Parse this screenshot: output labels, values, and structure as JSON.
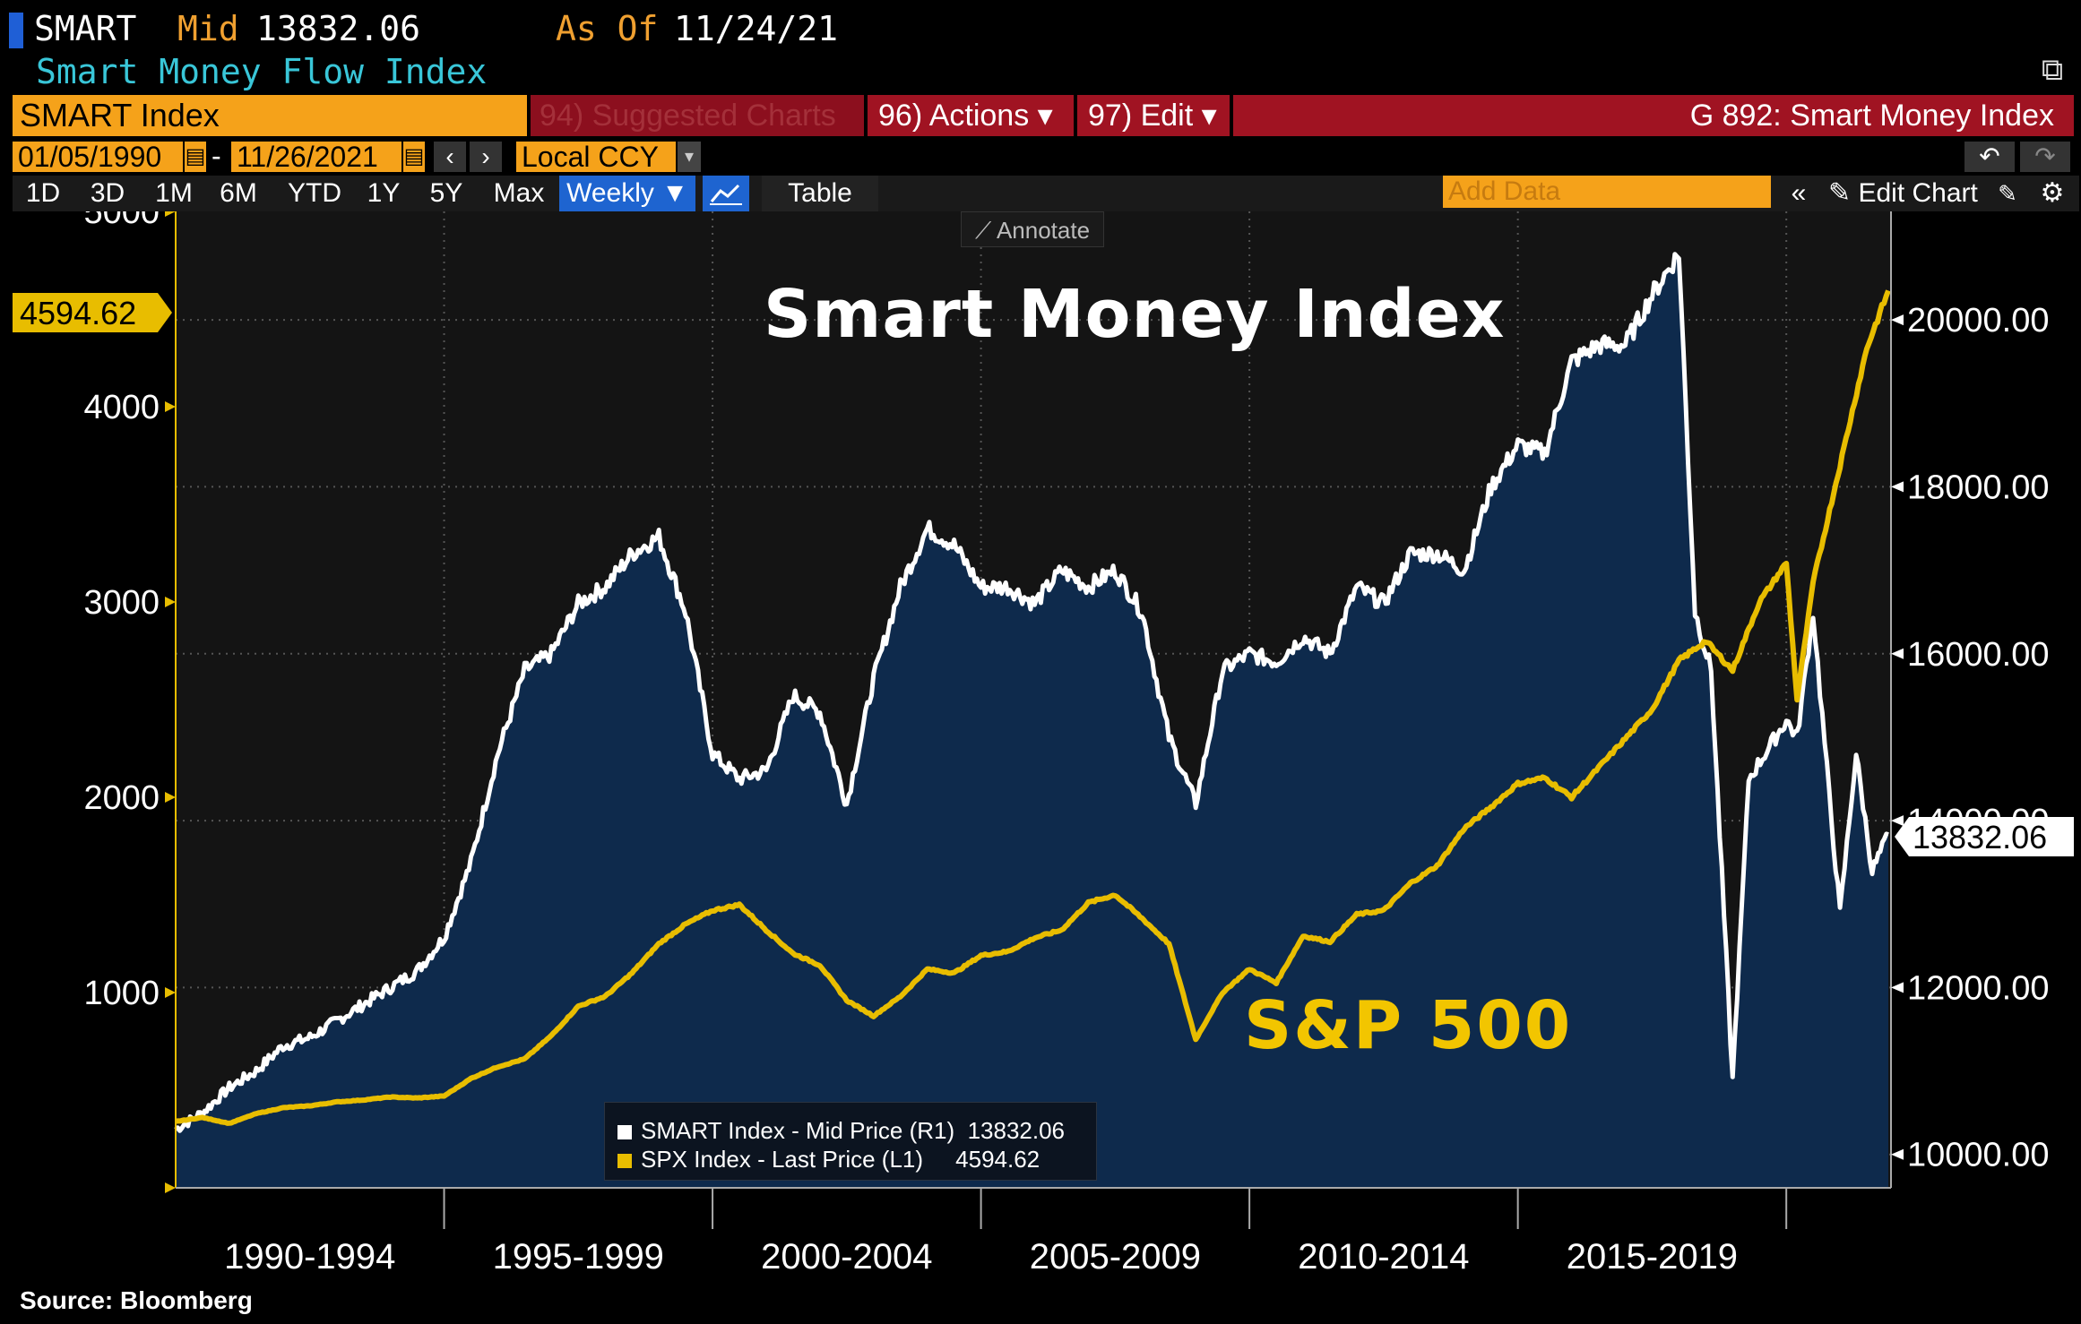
{
  "header": {
    "ticker": "SMART",
    "mid_label": "Mid",
    "mid_value": "13832.06",
    "asof_label": "As Of",
    "asof_value": "11/24/21",
    "subtitle": "Smart Money Flow Index"
  },
  "toolbar": {
    "security": "SMART Index",
    "suggested": "94) Suggested Charts",
    "actions": "96) Actions ▾",
    "edit": "97) Edit ▾",
    "graph_title": "G 892: Smart Money Index",
    "start_date": "01/05/1990",
    "end_date": "11/26/2021",
    "currency": "Local CCY",
    "ranges": [
      "1D",
      "3D",
      "1M",
      "6M",
      "YTD",
      "1Y",
      "5Y",
      "Max"
    ],
    "frequency": "Weekly ▼",
    "table": "Table",
    "add_data_placeholder": "Add Data",
    "edit_chart": "Edit Chart",
    "annotate": "Annotate"
  },
  "chart_data": {
    "type": "line",
    "title": "Smart Money Index",
    "annotation": "S&P 500",
    "x_categories": [
      "1990-1994",
      "1995-1999",
      "2000-2004",
      "2005-2009",
      "2010-2014",
      "2015-2019"
    ],
    "left_axis": {
      "ticks": [
        "5000",
        "4000",
        "3000",
        "2000",
        "1000"
      ],
      "range": [
        0,
        5000
      ]
    },
    "right_axis": {
      "ticks": [
        "20000.00",
        "18000.00",
        "16000.00",
        "14000.00",
        "12000.00",
        "10000.00"
      ],
      "range": [
        9600,
        21300
      ]
    },
    "series": [
      {
        "name": "SMART Index - Mid Price (R1)",
        "last": "13832.06",
        "axis": "right",
        "color": "#ffffff",
        "x": [
          1990.0,
          1990.5,
          1991.0,
          1991.5,
          1992.0,
          1992.5,
          1993.0,
          1993.5,
          1994.0,
          1994.5,
          1995.0,
          1995.5,
          1996.0,
          1996.5,
          1997.0,
          1997.5,
          1998.0,
          1998.5,
          1999.0,
          1999.5,
          2000.0,
          2000.5,
          2001.0,
          2001.5,
          2002.0,
          2002.5,
          2003.0,
          2003.5,
          2004.0,
          2004.5,
          2005.0,
          2005.5,
          2006.0,
          2006.5,
          2007.0,
          2007.5,
          2008.0,
          2008.5,
          2009.0,
          2009.5,
          2010.0,
          2010.5,
          2011.0,
          2011.5,
          2012.0,
          2012.5,
          2013.0,
          2013.5,
          2014.0,
          2014.5,
          2015.0,
          2015.5,
          2016.0,
          2016.5,
          2017.0,
          2017.5,
          2018.0,
          2018.3,
          2018.6,
          2019.0,
          2019.3,
          2019.6,
          2020.0,
          2020.2,
          2020.5,
          2020.8,
          2021.0,
          2021.3,
          2021.6,
          2021.9
        ],
        "y": [
          10300,
          10500,
          10800,
          11000,
          11300,
          11400,
          11600,
          11800,
          12000,
          12200,
          12600,
          13500,
          14800,
          15800,
          16000,
          16600,
          16800,
          17200,
          17400,
          16500,
          14800,
          14500,
          14600,
          15500,
          15300,
          14200,
          15700,
          16800,
          17500,
          17300,
          16800,
          16800,
          16600,
          17000,
          16800,
          17000,
          16500,
          15000,
          14200,
          15800,
          16000,
          15900,
          16200,
          16000,
          16800,
          16600,
          17200,
          17200,
          17000,
          18000,
          18500,
          18400,
          19500,
          19700,
          19700,
          20300,
          20800,
          16500,
          15800,
          10900,
          14500,
          14800,
          15200,
          15000,
          16500,
          14300,
          12900,
          14800,
          13400,
          13832.06
        ]
      },
      {
        "name": "SPX Index - Last Price (L1)",
        "last": "4594.62",
        "axis": "left",
        "color": "#e8bd00",
        "x": [
          1990.0,
          1990.5,
          1991.0,
          1991.5,
          1992.0,
          1992.5,
          1993.0,
          1993.5,
          1994.0,
          1994.5,
          1995.0,
          1995.5,
          1996.0,
          1996.5,
          1997.0,
          1997.5,
          1998.0,
          1998.5,
          1999.0,
          1999.5,
          2000.0,
          2000.5,
          2001.0,
          2001.5,
          2002.0,
          2002.5,
          2003.0,
          2003.5,
          2004.0,
          2004.5,
          2005.0,
          2005.5,
          2006.0,
          2006.5,
          2007.0,
          2007.5,
          2008.0,
          2008.5,
          2009.0,
          2009.5,
          2010.0,
          2010.5,
          2011.0,
          2011.5,
          2012.0,
          2012.5,
          2013.0,
          2013.5,
          2014.0,
          2014.5,
          2015.0,
          2015.5,
          2016.0,
          2016.5,
          2017.0,
          2017.5,
          2018.0,
          2018.5,
          2019.0,
          2019.5,
          2020.0,
          2020.2,
          2020.5,
          2021.0,
          2021.5,
          2021.9
        ],
        "y": [
          340,
          360,
          330,
          380,
          410,
          420,
          440,
          450,
          465,
          460,
          470,
          560,
          620,
          660,
          780,
          930,
          980,
          1100,
          1250,
          1350,
          1420,
          1450,
          1320,
          1200,
          1140,
          960,
          880,
          980,
          1120,
          1100,
          1190,
          1210,
          1280,
          1320,
          1460,
          1500,
          1380,
          1250,
          760,
          1000,
          1120,
          1050,
          1290,
          1260,
          1400,
          1420,
          1560,
          1650,
          1840,
          1950,
          2070,
          2100,
          2000,
          2150,
          2300,
          2450,
          2700,
          2800,
          2650,
          3000,
          3200,
          2500,
          3100,
          3700,
          4300,
          4594.62
        ]
      }
    ],
    "source": "Source: Bloomberg"
  }
}
